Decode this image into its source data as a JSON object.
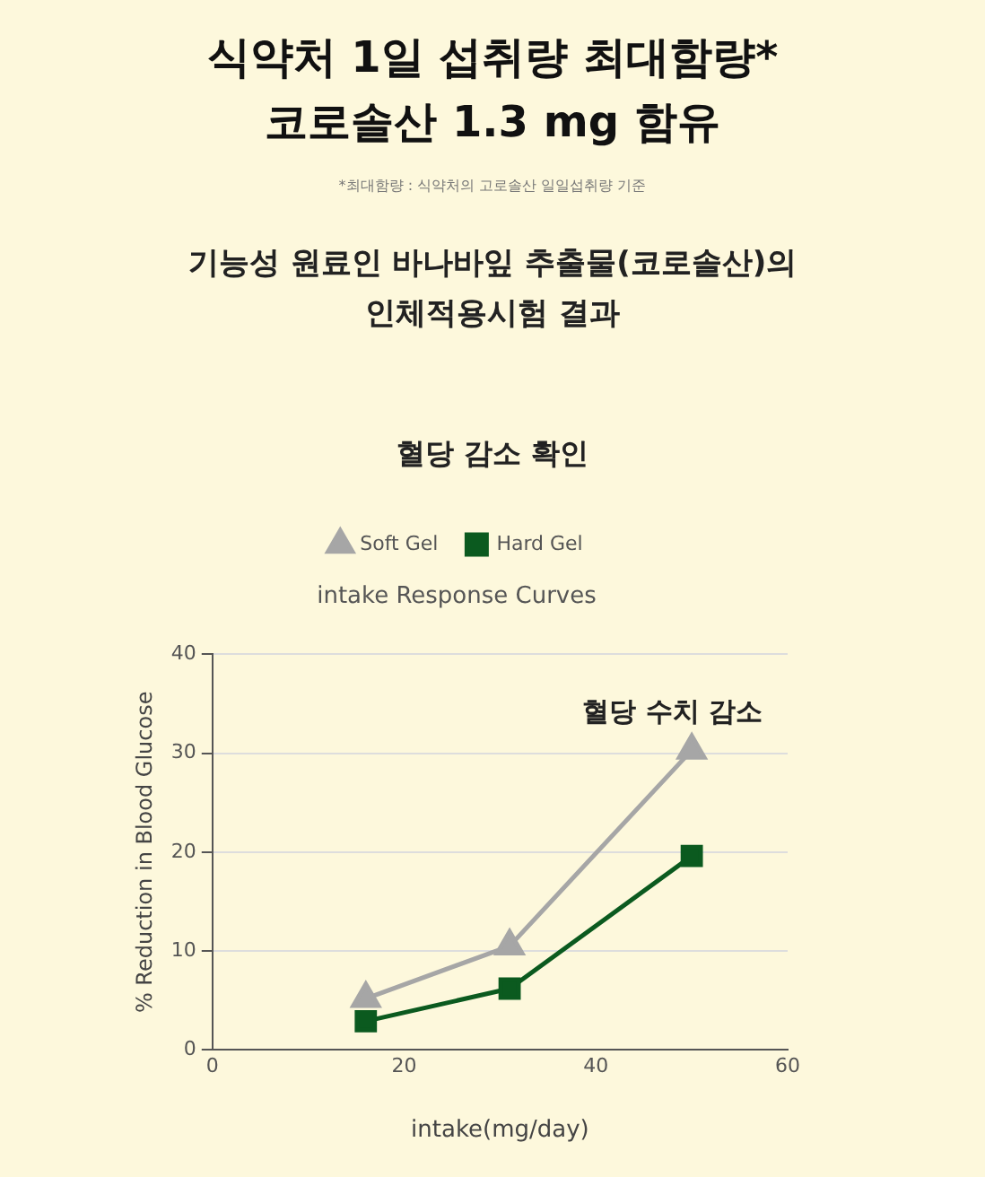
{
  "chart_data": {
    "type": "line",
    "title": "intake Response Curves",
    "xlabel": "intake(mg/day)",
    "ylabel": "% Reduction in Blood Glucose",
    "annotations": [
      "식약처 1일 섭취량 최대함량*\n코로솔산 1.3 mg 함유",
      "*최대함량 : 식약처의 고로솔산 일일섭취량 기준",
      "기능성 원료인 바나바잎 추출물(코로솔산)의\n인체적용시험 결과",
      "혈당 감소 확인",
      "혈당 수치 감소"
    ],
    "x": [
      16,
      31,
      50
    ],
    "series": [
      {
        "name": "Soft Gel",
        "color": "#a6a6a6",
        "marker": "triangle",
        "values": [
          5.2,
          10.5,
          30.3
        ]
      },
      {
        "name": "Hard Gel",
        "color": "#0b5a1f",
        "marker": "square",
        "values": [
          2.9,
          6.2,
          19.6
        ]
      }
    ],
    "xlim": [
      0,
      60
    ],
    "xticks": [
      0,
      20,
      40,
      60
    ],
    "ylim": [
      0,
      40
    ],
    "yticks": [
      0,
      10,
      20,
      30,
      40
    ],
    "grid": "y",
    "legend": "top",
    "line_style": "solid"
  }
}
